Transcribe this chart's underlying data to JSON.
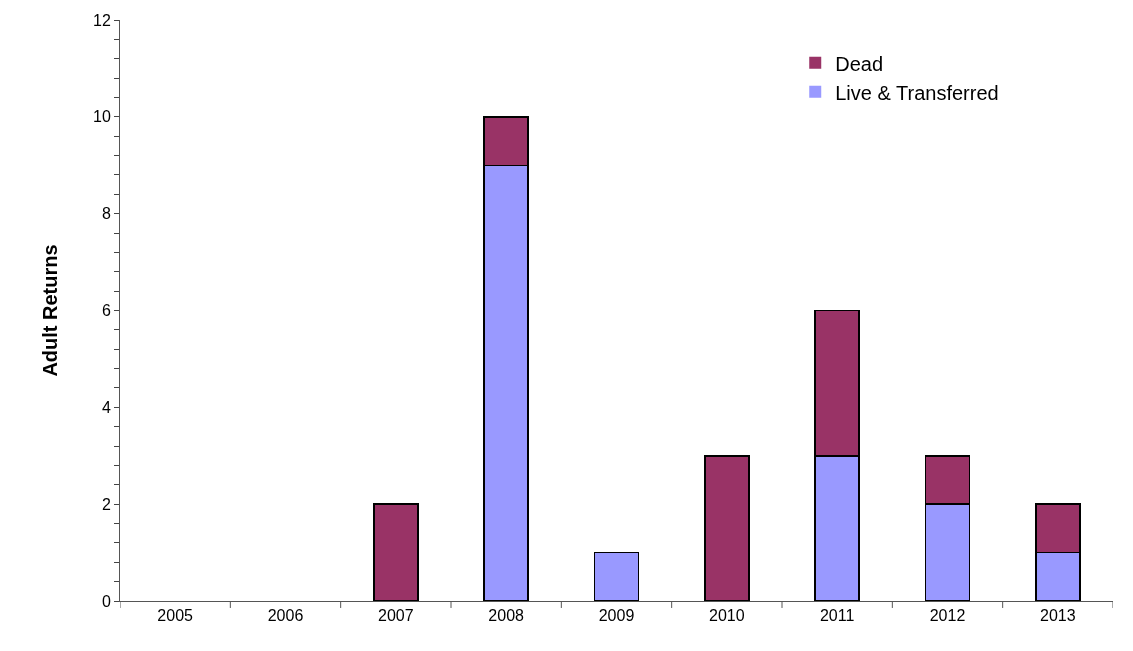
{
  "chart_data": {
    "type": "bar",
    "stacked": true,
    "ylabel": "Adult Returns",
    "categories": [
      "2005",
      "2006",
      "2007",
      "2008",
      "2009",
      "2010",
      "2011",
      "2012",
      "2013"
    ],
    "series": [
      {
        "name": "Live & Transferred",
        "color": "#9999ff",
        "values": [
          0,
          0,
          0,
          9,
          1,
          0,
          3,
          2,
          1
        ]
      },
      {
        "name": "Dead",
        "color": "#993366",
        "values": [
          0,
          0,
          2,
          1,
          0,
          3,
          3,
          1,
          1
        ]
      }
    ],
    "ylim": [
      0,
      12
    ],
    "yticks": [
      0,
      {
        "value": 0.4,
        "label": null
      },
      {
        "value": 0.8,
        "label": null
      },
      {
        "value": 1.2,
        "label": null
      },
      {
        "value": 1.6,
        "label": null
      },
      2,
      {
        "value": 2.4,
        "label": null
      },
      {
        "value": 2.8,
        "label": null
      },
      {
        "value": 3.2,
        "label": null
      },
      {
        "value": 3.6,
        "label": null
      },
      4,
      {
        "value": 4.4,
        "label": null
      },
      {
        "value": 4.8,
        "label": null
      },
      {
        "value": 5.2,
        "label": null
      },
      {
        "value": 5.6,
        "label": null
      },
      6,
      {
        "value": 6.4,
        "label": null
      },
      {
        "value": 6.8,
        "label": null
      },
      {
        "value": 7.2,
        "label": null
      },
      {
        "value": 7.6,
        "label": null
      },
      8,
      {
        "value": 8.4,
        "label": null
      },
      {
        "value": 8.8,
        "label": null
      },
      {
        "value": 9.2,
        "label": null
      },
      {
        "value": 9.6,
        "label": null
      },
      10,
      {
        "value": 10.4,
        "label": null
      },
      {
        "value": 10.8,
        "label": null
      },
      {
        "value": 11.2,
        "label": null
      },
      {
        "value": 11.6,
        "label": null
      },
      12
    ],
    "legend": "top right"
  }
}
